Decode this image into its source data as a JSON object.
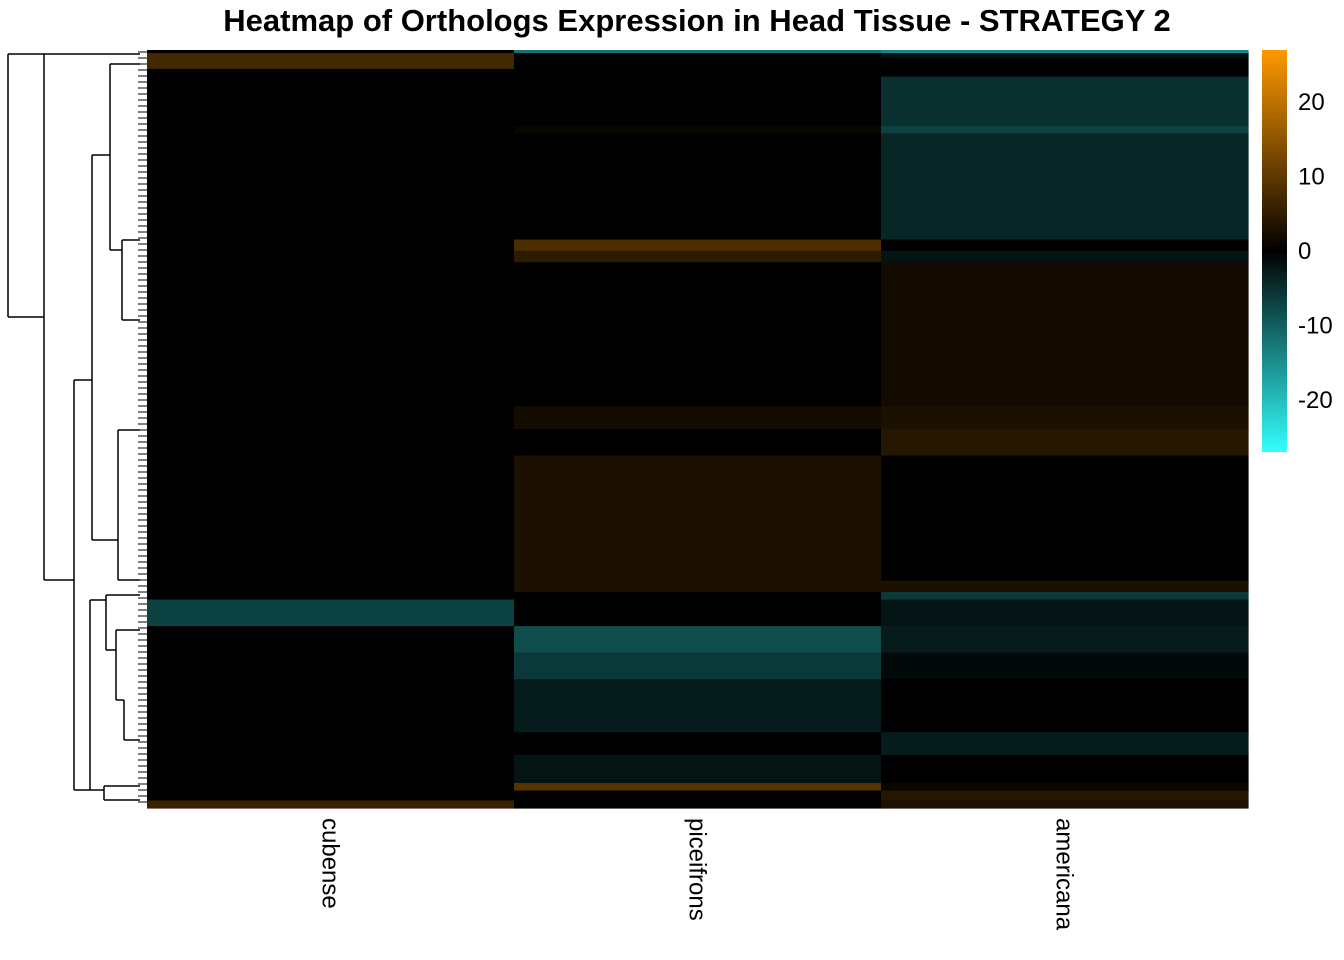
{
  "chart_data": {
    "type": "heatmap",
    "title": "Heatmap of Orthologs Expression in Head Tissue - STRATEGY 2",
    "columns": [
      "cubense",
      "piceifrons",
      "americana"
    ],
    "color_scale": {
      "min": -27,
      "max": 27,
      "low_color": "#33ffff",
      "mid_color": "#000000",
      "high_color": "#ff9900",
      "ticks": [
        20,
        10,
        0,
        -10,
        -20
      ],
      "tick_labels": [
        "20",
        "10",
        "0",
        "-10",
        "-20"
      ]
    },
    "row_dendrogram": true,
    "row_blocks": [
      {
        "rows": [
          0.0,
          0.004
        ],
        "values": [
          0,
          -12,
          -14
        ]
      },
      {
        "rows": [
          0.004,
          0.01
        ],
        "values": [
          7,
          0,
          -2
        ]
      },
      {
        "rows": [
          0.01,
          0.025
        ],
        "values": [
          7,
          0,
          0
        ]
      },
      {
        "rows": [
          0.025,
          0.035
        ],
        "values": [
          0,
          0,
          0
        ]
      },
      {
        "rows": [
          0.035,
          0.1
        ],
        "values": [
          0,
          0,
          -5
        ]
      },
      {
        "rows": [
          0.1,
          0.11
        ],
        "values": [
          0,
          1,
          -7
        ]
      },
      {
        "rows": [
          0.11,
          0.25
        ],
        "values": [
          0,
          0,
          -4
        ]
      },
      {
        "rows": [
          0.25,
          0.265
        ],
        "values": [
          0,
          8,
          0
        ]
      },
      {
        "rows": [
          0.265,
          0.28
        ],
        "values": [
          0,
          5,
          -2
        ]
      },
      {
        "rows": [
          0.28,
          0.47
        ],
        "values": [
          0,
          0,
          2
        ]
      },
      {
        "rows": [
          0.47,
          0.5
        ],
        "values": [
          0,
          2,
          3
        ]
      },
      {
        "rows": [
          0.5,
          0.535
        ],
        "values": [
          0,
          0,
          4
        ]
      },
      {
        "rows": [
          0.535,
          0.7
        ],
        "values": [
          0,
          3,
          0
        ]
      },
      {
        "rows": [
          0.7,
          0.715
        ],
        "values": [
          0,
          3,
          3
        ]
      },
      {
        "rows": [
          0.715,
          0.725
        ],
        "values": [
          0,
          0,
          -6
        ]
      },
      {
        "rows": [
          0.725,
          0.76
        ],
        "values": [
          -7,
          0,
          -2
        ]
      },
      {
        "rows": [
          0.76,
          0.795
        ],
        "values": [
          0,
          -8,
          -3
        ]
      },
      {
        "rows": [
          0.795,
          0.83
        ],
        "values": [
          0,
          -6,
          -1
        ]
      },
      {
        "rows": [
          0.83,
          0.9
        ],
        "values": [
          0,
          -3,
          0
        ]
      },
      {
        "rows": [
          0.9,
          0.93
        ],
        "values": [
          0,
          0,
          -3
        ]
      },
      {
        "rows": [
          0.93,
          0.967
        ],
        "values": [
          0,
          -2,
          0
        ]
      },
      {
        "rows": [
          0.967,
          0.977
        ],
        "values": [
          0,
          9,
          1
        ]
      },
      {
        "rows": [
          0.977,
          0.99
        ],
        "values": [
          0,
          0,
          4
        ]
      },
      {
        "rows": [
          0.99,
          1.0
        ],
        "values": [
          6,
          0,
          3
        ]
      }
    ]
  }
}
